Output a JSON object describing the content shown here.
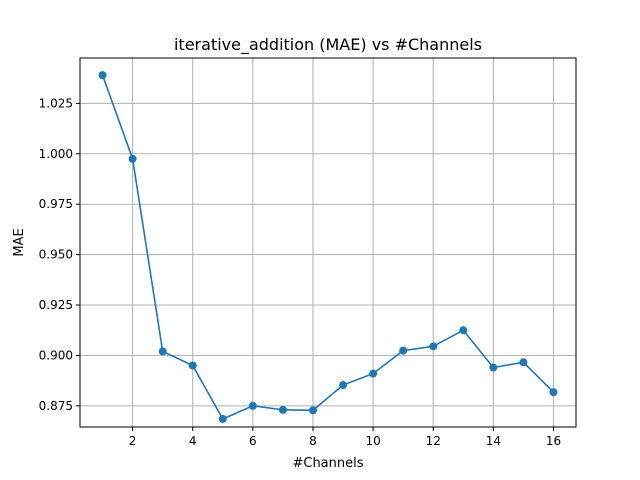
{
  "chart_data": {
    "type": "line",
    "title": "iterative_addition (MAE) vs #Channels",
    "xlabel": "#Channels",
    "ylabel": "MAE",
    "xlim": [
      0.25,
      16.75
    ],
    "ylim": [
      0.8645,
      1.0475
    ],
    "x_ticks": [
      2,
      4,
      6,
      8,
      10,
      12,
      14,
      16
    ],
    "x_tick_labels": [
      "2",
      "4",
      "6",
      "8",
      "10",
      "12",
      "14",
      "16"
    ],
    "y_ticks": [
      0.875,
      0.9,
      0.925,
      0.95,
      0.975,
      1.0,
      1.025
    ],
    "y_tick_labels": [
      "0.875",
      "0.900",
      "0.925",
      "0.950",
      "0.975",
      "1.000",
      "1.025"
    ],
    "grid": true,
    "line_color": "#1f77b4",
    "series": [
      {
        "x": [
          1,
          2,
          3,
          4,
          5,
          6,
          7,
          8,
          9,
          10,
          11,
          12,
          13,
          14,
          15,
          16
        ],
        "values": [
          1.039,
          0.9975,
          0.902,
          0.895,
          0.8685,
          0.875,
          0.873,
          0.8728,
          0.8853,
          0.891,
          0.9024,
          0.9045,
          0.9125,
          0.894,
          0.8966,
          0.8818
        ]
      }
    ]
  }
}
